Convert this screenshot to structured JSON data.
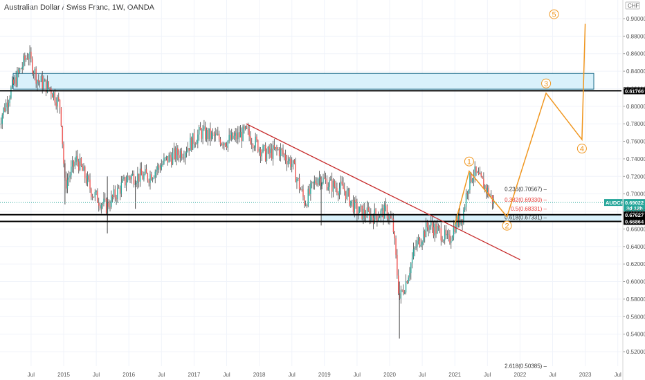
{
  "header": {
    "title": "Australian Dollar / Swiss Franc, 1W, OANDA"
  },
  "axis": {
    "currency": "CHF"
  },
  "chart_data": {
    "type": "candlestick",
    "symbol": "AUDCHF",
    "interval": "1W",
    "source": "OANDA",
    "ylim": [
      0.505,
      0.91
    ],
    "y_ticks": [
      "0.52000",
      "0.54000",
      "0.56000",
      "0.58000",
      "0.60000",
      "0.62000",
      "0.64000",
      "0.66000",
      "0.68000",
      "0.70000",
      "0.72000",
      "0.74000",
      "0.76000",
      "0.78000",
      "0.80000",
      "0.82000",
      "0.84000",
      "0.86000",
      "0.88000",
      "0.90000"
    ],
    "x_ticks": [
      "Jul",
      "2015",
      "Jul",
      "2016",
      "Jul",
      "2017",
      "Jul",
      "2018",
      "Jul",
      "2019",
      "Jul",
      "2020",
      "Jul",
      "2021",
      "Jul",
      "2022",
      "Jul",
      "2023",
      "Jul"
    ],
    "price_path": [
      [
        2014.0,
        0.78
      ],
      [
        2014.2,
        0.82
      ],
      [
        2014.45,
        0.86
      ],
      [
        2014.6,
        0.83
      ],
      [
        2014.8,
        0.82
      ],
      [
        2014.95,
        0.8
      ],
      [
        2015.02,
        0.71
      ],
      [
        2015.2,
        0.74
      ],
      [
        2015.45,
        0.7
      ],
      [
        2015.65,
        0.685
      ],
      [
        2015.85,
        0.705
      ],
      [
        2016.0,
        0.72
      ],
      [
        2016.3,
        0.72
      ],
      [
        2016.6,
        0.74
      ],
      [
        2016.85,
        0.75
      ],
      [
        2017.1,
        0.77
      ],
      [
        2017.5,
        0.76
      ],
      [
        2017.8,
        0.77
      ],
      [
        2018.1,
        0.745
      ],
      [
        2018.3,
        0.75
      ],
      [
        2018.5,
        0.735
      ],
      [
        2018.7,
        0.69
      ],
      [
        2018.9,
        0.72
      ],
      [
        2019.1,
        0.71
      ],
      [
        2019.3,
        0.705
      ],
      [
        2019.5,
        0.68
      ],
      [
        2019.75,
        0.675
      ],
      [
        2019.95,
        0.68
      ],
      [
        2020.05,
        0.665
      ],
      [
        2020.15,
        0.58
      ],
      [
        2020.25,
        0.6
      ],
      [
        2020.4,
        0.64
      ],
      [
        2020.6,
        0.665
      ],
      [
        2020.8,
        0.655
      ],
      [
        2020.9,
        0.645
      ],
      [
        2021.0,
        0.665
      ],
      [
        2021.12,
        0.675
      ],
      [
        2021.2,
        0.71
      ],
      [
        2021.28,
        0.725
      ],
      [
        2021.45,
        0.71
      ],
      [
        2021.6,
        0.69
      ]
    ],
    "current_price": "0.69022",
    "countdown": "3d 12h",
    "horizontal_levels": [
      "0.81766",
      "0.67627",
      "0.66864"
    ],
    "supply_zone": [
      0.8195,
      0.8375
    ],
    "demand_zone": [
      0.6686,
      0.6763
    ],
    "trendline": [
      [
        2017.8,
        0.78
      ],
      [
        2022.0,
        0.625
      ]
    ],
    "fibonacci": [
      {
        "label": "0.236(0.70567)",
        "value": 0.70567,
        "color": "#333333"
      },
      {
        "label": "0.382(0.69330)",
        "value": 0.6933,
        "color": "#e53935"
      },
      {
        "label": "0.5(0.68331)",
        "value": 0.68331,
        "color": "#e53935"
      },
      {
        "label": "0.618(0.67331)",
        "value": 0.67331,
        "color": "#333333"
      },
      {
        "label": "2.618(0.50385)",
        "value": 0.50385,
        "color": "#333333"
      }
    ],
    "elliott_waves": [
      {
        "label": "1",
        "x": 2021.22,
        "y": 0.726
      },
      {
        "label": "2",
        "x": 2021.8,
        "y": 0.674
      },
      {
        "label": "3",
        "x": 2022.4,
        "y": 0.815
      },
      {
        "label": "4",
        "x": 2022.95,
        "y": 0.762
      },
      {
        "label": "5",
        "x": 2023.0,
        "y": 0.894
      }
    ],
    "wave_start": {
      "x": 2021.0,
      "y": 0.665
    },
    "colors": {
      "up": "#26a69a",
      "down": "#ef5350",
      "wave": "#f0961e",
      "trend": "#c62828",
      "zone_fill": "#d9f1fb",
      "zone_stroke": "#1e88e5",
      "price_tag": "#26a69a"
    }
  }
}
